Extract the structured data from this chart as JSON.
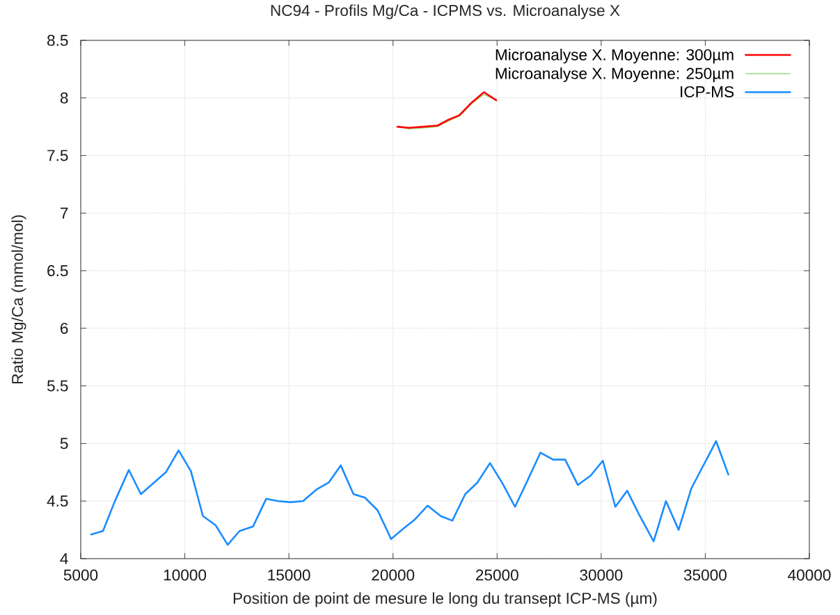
{
  "chart_data": {
    "type": "line",
    "title": "NC94 - Profils Mg/Ca - ICPMS vs. Microanalyse X",
    "xlabel": "Position de point de mesure le long du transept ICP-MS (µm)",
    "ylabel": "Ratio Mg/Ca (mmol/mol)",
    "xlim": [
      5000,
      40000
    ],
    "ylim": [
      4,
      8.5
    ],
    "xticks": [
      5000,
      10000,
      15000,
      20000,
      25000,
      30000,
      35000,
      40000
    ],
    "yticks": [
      4,
      4.5,
      5,
      5.5,
      6,
      6.5,
      7,
      7.5,
      8,
      8.5
    ],
    "grid": true,
    "legend": "top right",
    "marker": "none",
    "line_style": "solid",
    "series": [
      {
        "name": "Microanalyse X. Moyenne: 300µm",
        "color": "#ff0000",
        "x": [
          20210,
          20760,
          21480,
          22140,
          22660,
          23190,
          23780,
          24370,
          24960
        ],
        "values": [
          7.75,
          7.74,
          7.75,
          7.76,
          7.81,
          7.85,
          7.96,
          8.05,
          7.98
        ]
      },
      {
        "name": "Microanalyse X. Moyenne: 250µm",
        "color": "#7ddc6a",
        "x": [
          20210,
          20760,
          21480,
          22140,
          22660,
          23190,
          23780,
          24370,
          24960
        ],
        "values": [
          7.75,
          7.73,
          7.74,
          7.75,
          7.8,
          7.84,
          7.95,
          8.03,
          7.98
        ]
      },
      {
        "name": "ICP-MS",
        "color": "#1a8cff",
        "x": [
          5500,
          6070,
          6620,
          7310,
          7890,
          9090,
          9700,
          10290,
          10870,
          11480,
          12060,
          12630,
          13280,
          13910,
          14480,
          15090,
          15680,
          16320,
          16910,
          17490,
          18100,
          18650,
          19260,
          19910,
          20490,
          21050,
          21660,
          22290,
          22850,
          23470,
          24050,
          24660,
          25270,
          25860,
          26440,
          27080,
          27690,
          28270,
          28880,
          29490,
          30080,
          30680,
          31250,
          31830,
          32520,
          33110,
          33720,
          34330,
          34940,
          35520,
          36110
        ],
        "values": [
          4.21,
          4.24,
          4.49,
          4.77,
          4.56,
          4.75,
          4.94,
          4.76,
          4.37,
          4.29,
          4.12,
          4.24,
          4.28,
          4.52,
          4.5,
          4.49,
          4.5,
          4.6,
          4.66,
          4.81,
          4.56,
          4.53,
          4.42,
          4.17,
          4.26,
          4.34,
          4.46,
          4.37,
          4.33,
          4.56,
          4.66,
          4.83,
          4.65,
          4.45,
          4.67,
          4.92,
          4.86,
          4.86,
          4.64,
          4.72,
          4.85,
          4.45,
          4.59,
          4.38,
          4.15,
          4.5,
          4.25,
          4.61,
          4.82,
          5.02,
          4.73
        ]
      }
    ]
  }
}
